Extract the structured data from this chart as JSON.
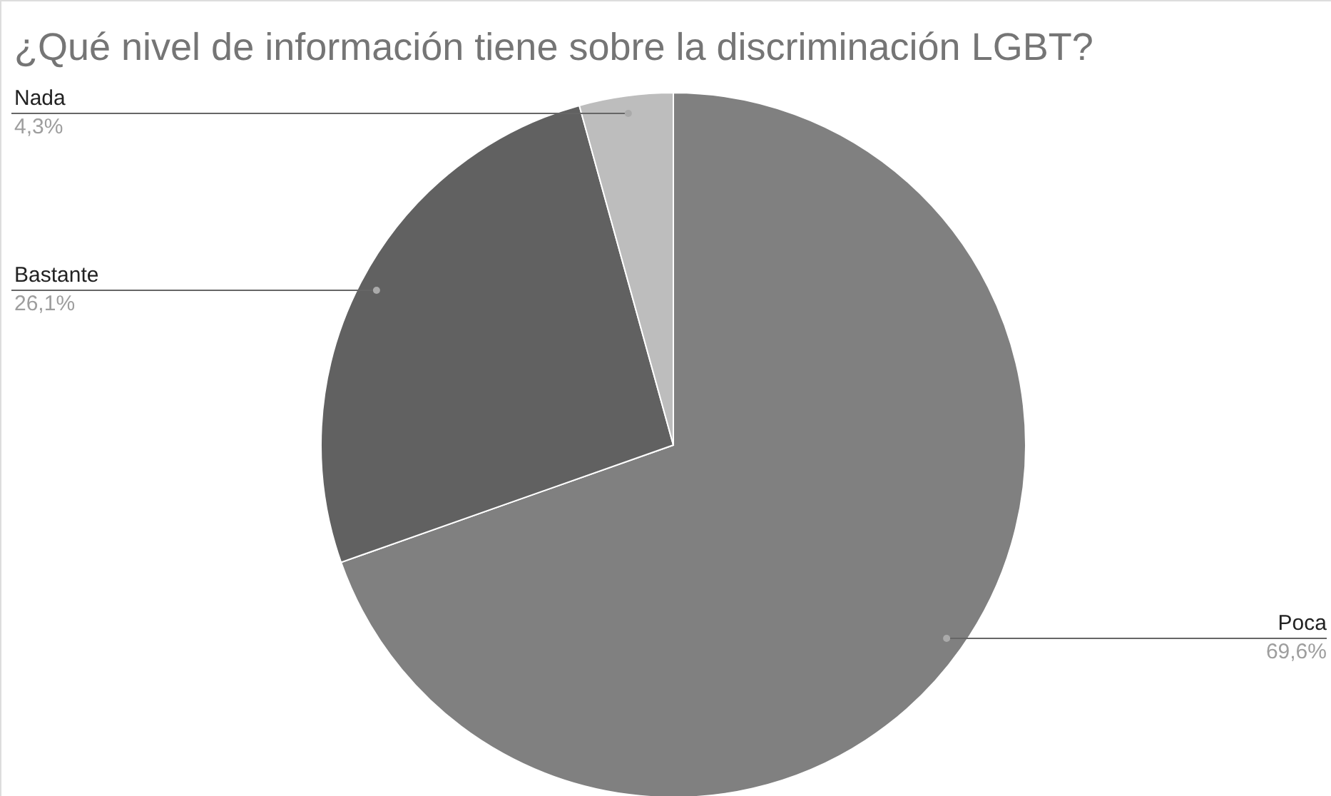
{
  "chart_data": {
    "type": "pie",
    "title": "¿Qué nivel de información tiene sobre la discriminación LGBT?",
    "categories": [
      "Poca",
      "Bastante",
      "Nada"
    ],
    "values": [
      69.6,
      26.1,
      4.3
    ],
    "colors": [
      "#808080",
      "#616161",
      "#bdbdbd"
    ],
    "value_labels": [
      "69,6%",
      "26,1%",
      "4,3%"
    ]
  }
}
